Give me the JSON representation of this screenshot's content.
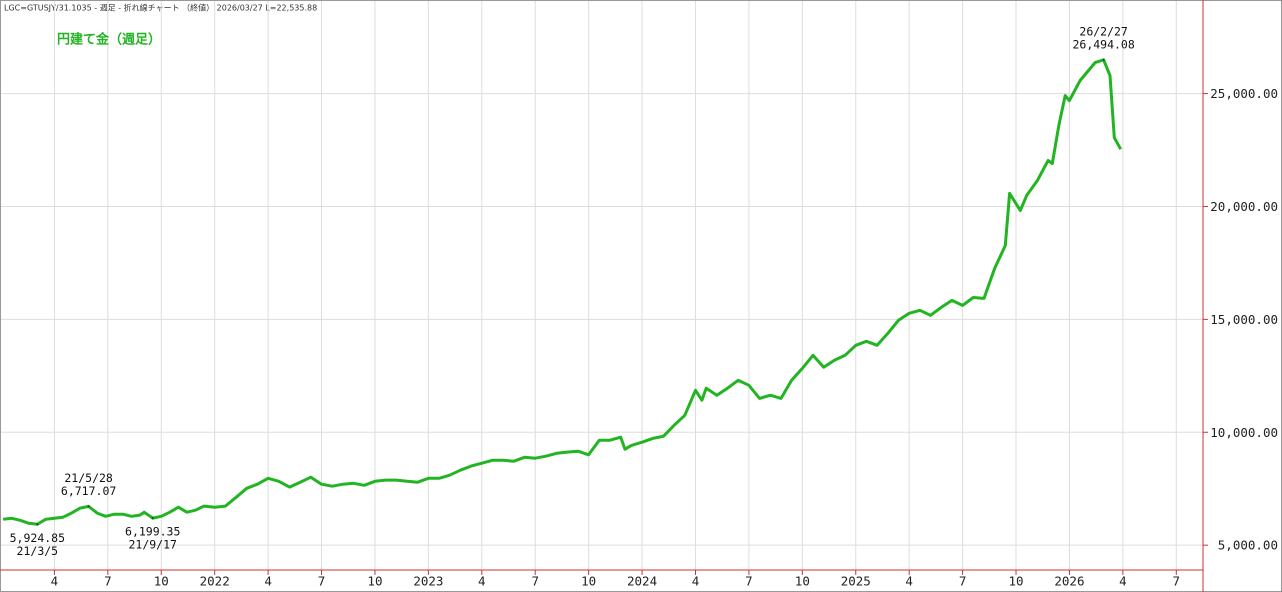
{
  "header": "LGC=GTUSJY/31.1035 - 週足 - 折れ線チャート （終値） 2026/03/27 L=22,535.88",
  "chart_data": {
    "type": "line",
    "grid": true,
    "ylim": [
      3900,
      29100
    ],
    "yticks": [
      {
        "value": 5000,
        "label": "5,000.00"
      },
      {
        "value": 10000,
        "label": "10,000.00"
      },
      {
        "value": 15000,
        "label": "15,000.00"
      },
      {
        "value": 20000,
        "label": "20,000.00"
      },
      {
        "value": 25000,
        "label": "25,000.00"
      }
    ],
    "xlim": [
      2021.0,
      2026.625
    ],
    "xticks": [
      {
        "value": 2021.25,
        "label": "4"
      },
      {
        "value": 2021.5,
        "label": "7"
      },
      {
        "value": 2021.75,
        "label": "10"
      },
      2022,
      {
        "value": 2022.25,
        "label": "4"
      },
      {
        "value": 2022.5,
        "label": "7"
      },
      {
        "value": 2022.75,
        "label": "10"
      },
      2023,
      {
        "value": 2023.25,
        "label": "4"
      },
      {
        "value": 2023.5,
        "label": "7"
      },
      {
        "value": 2023.75,
        "label": "10"
      },
      2024,
      {
        "value": 2024.25,
        "label": "4"
      },
      {
        "value": 2024.5,
        "label": "7"
      },
      {
        "value": 2024.75,
        "label": "10"
      },
      2025,
      {
        "value": 2025.25,
        "label": "4"
      },
      {
        "value": 2025.5,
        "label": "7"
      },
      {
        "value": 2025.75,
        "label": "10"
      },
      2026,
      {
        "value": 2026.25,
        "label": "4"
      },
      {
        "value": 2026.5,
        "label": "7"
      }
    ],
    "series": [
      {
        "name": "円建て金（週足）",
        "color": "#22b422",
        "x": [
          2021.01,
          2021.05,
          2021.09,
          2021.13,
          2021.17,
          2021.21,
          2021.25,
          2021.29,
          2021.33,
          2021.37,
          2021.41,
          2021.45,
          2021.49,
          2021.53,
          2021.57,
          2021.61,
          2021.65,
          2021.67,
          2021.71,
          2021.75,
          2021.79,
          2021.83,
          2021.87,
          2021.91,
          2021.95,
          2022.0,
          2022.05,
          2022.1,
          2022.15,
          2022.2,
          2022.25,
          2022.3,
          2022.35,
          2022.4,
          2022.45,
          2022.5,
          2022.55,
          2022.6,
          2022.65,
          2022.7,
          2022.75,
          2022.8,
          2022.85,
          2022.9,
          2022.95,
          2023.0,
          2023.05,
          2023.1,
          2023.15,
          2023.2,
          2023.25,
          2023.3,
          2023.35,
          2023.4,
          2023.45,
          2023.5,
          2023.55,
          2023.6,
          2023.65,
          2023.7,
          2023.75,
          2023.8,
          2023.85,
          2023.9,
          2023.92,
          2023.95,
          2024.0,
          2024.05,
          2024.1,
          2024.15,
          2024.2,
          2024.25,
          2024.28,
          2024.3,
          2024.35,
          2024.4,
          2024.45,
          2024.5,
          2024.55,
          2024.6,
          2024.65,
          2024.7,
          2024.75,
          2024.8,
          2024.85,
          2024.9,
          2024.95,
          2025.0,
          2025.05,
          2025.1,
          2025.15,
          2025.2,
          2025.25,
          2025.3,
          2025.35,
          2025.4,
          2025.45,
          2025.5,
          2025.55,
          2025.6,
          2025.65,
          2025.7,
          2025.72,
          2025.77,
          2025.8,
          2025.85,
          2025.9,
          2025.92,
          2025.95,
          2025.98,
          2026.0,
          2026.05,
          2026.12,
          2026.16,
          2026.19,
          2026.21,
          2026.24
        ],
        "values": [
          6150,
          6190,
          6100,
          5970,
          5924.85,
          6150,
          6190,
          6240,
          6420,
          6640,
          6717.07,
          6420,
          6280,
          6370,
          6370,
          6280,
          6330,
          6460,
          6199.35,
          6280,
          6460,
          6680,
          6460,
          6550,
          6730,
          6680,
          6730,
          7120,
          7520,
          7700,
          7960,
          7830,
          7570,
          7790,
          8010,
          7700,
          7610,
          7700,
          7740,
          7650,
          7830,
          7880,
          7880,
          7830,
          7790,
          7960,
          7960,
          8100,
          8320,
          8500,
          8630,
          8760,
          8760,
          8720,
          8890,
          8850,
          8940,
          9070,
          9120,
          9160,
          9000,
          9650,
          9650,
          9780,
          9250,
          9420,
          9560,
          9730,
          9820,
          10310,
          10750,
          11860,
          11420,
          11950,
          11640,
          11950,
          12300,
          12080,
          11500,
          11640,
          11500,
          12300,
          12830,
          13410,
          12880,
          13190,
          13410,
          13850,
          14030,
          13850,
          14380,
          14960,
          15270,
          15400,
          15180,
          15530,
          15840,
          15620,
          15970,
          15930,
          17260,
          18270,
          20580,
          19820,
          20490,
          21150,
          22040,
          21900,
          23580,
          24910,
          24690,
          25580,
          26370,
          26494.08,
          25800,
          23050,
          22535.88
        ]
      }
    ],
    "annotations": [
      {
        "date": "21/3/5",
        "x": 2021.17,
        "value": 5924.85,
        "value_label": "5,924.85",
        "position": "below"
      },
      {
        "date": "21/5/28",
        "x": 2021.41,
        "value": 6717.07,
        "value_label": "6,717.07",
        "position": "above"
      },
      {
        "date": "21/9/17",
        "x": 2021.71,
        "value": 6199.35,
        "value_label": "6,199.35",
        "position": "below"
      },
      {
        "date": "26/2/27",
        "x": 2026.16,
        "value": 26494.08,
        "value_label": "26,494.08",
        "position": "above"
      }
    ]
  }
}
